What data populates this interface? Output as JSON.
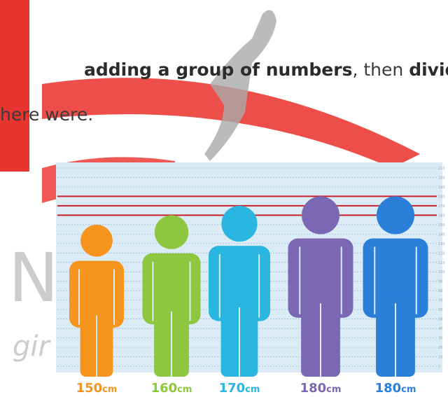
{
  "text": {
    "line1": [
      {
        "text": "adding a group of numbers",
        "bold": true
      },
      {
        "text": ", then ",
        "bold": false
      },
      {
        "text": "dividi",
        "bold": true
      }
    ],
    "line2": "here were."
  },
  "watermark": {
    "letter": "N",
    "word": "gir"
  },
  "infographic": {
    "ruler": [
      0,
      10,
      20,
      30,
      40,
      50,
      60,
      70,
      80,
      90,
      100,
      110,
      120,
      130,
      140,
      150,
      160,
      170,
      180,
      190,
      200,
      210
    ],
    "highlight": [
      180,
      170,
      160
    ],
    "figures": [
      {
        "height": 150,
        "unit": "cm",
        "color": "#f7941d"
      },
      {
        "height": 160,
        "unit": "cm",
        "color": "#8dc63f"
      },
      {
        "height": 170,
        "unit": "cm",
        "color": "#29b6e0"
      },
      {
        "height": 180,
        "unit": "cm",
        "color": "#7b68b5"
      },
      {
        "height": 180,
        "unit": "cm",
        "color": "#2b7fd9"
      }
    ]
  }
}
